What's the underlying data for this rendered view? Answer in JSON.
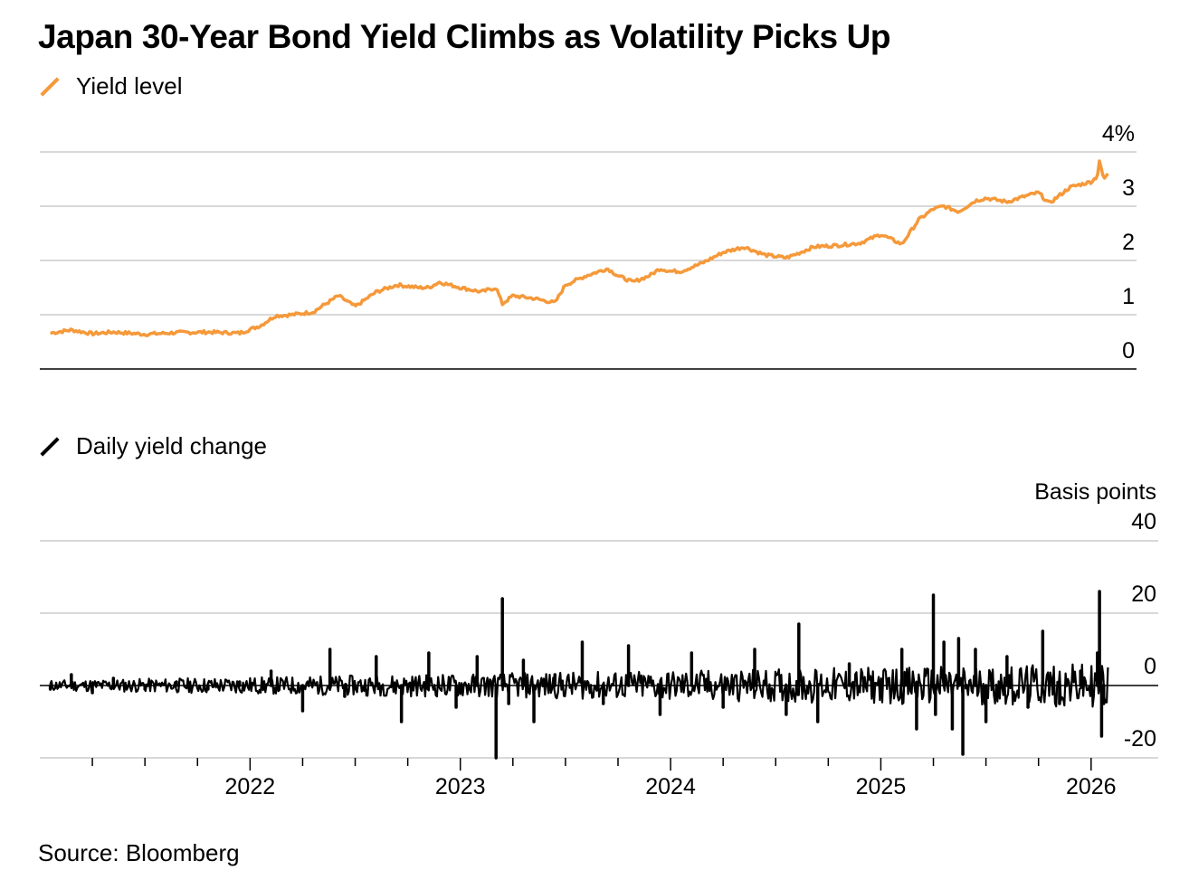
{
  "title": "Japan 30-Year Bond Yield Climbs as Volatility Picks Up",
  "source": "Source: Bloomberg",
  "colors": {
    "yield": "#F5993A",
    "change": "#000000",
    "grid": "#cccccc",
    "axis": "#000000"
  },
  "chart_data": [
    {
      "type": "line",
      "name": "yield-level",
      "legend": "Yield level",
      "unit_label": "",
      "x_range": [
        2021.0,
        2026.13
      ],
      "ylim": [
        0,
        4
      ],
      "yticks": [
        0,
        1,
        2,
        3,
        4
      ],
      "ytick_labels": [
        "0",
        "1",
        "2",
        "3",
        "4%"
      ],
      "series": [
        {
          "name": "Yield level",
          "x": [
            2021.05,
            2021.15,
            2021.25,
            2021.35,
            2021.5,
            2021.65,
            2021.8,
            2021.95,
            2022.05,
            2022.12,
            2022.2,
            2022.3,
            2022.42,
            2022.5,
            2022.6,
            2022.7,
            2022.8,
            2022.85,
            2022.9,
            2023.0,
            2023.1,
            2023.17,
            2023.2,
            2023.25,
            2023.35,
            2023.45,
            2023.5,
            2023.6,
            2023.7,
            2023.75,
            2023.82,
            2023.9,
            2023.95,
            2024.0,
            2024.05,
            2024.15,
            2024.25,
            2024.35,
            2024.45,
            2024.55,
            2024.6,
            2024.68,
            2024.8,
            2024.9,
            2025.0,
            2025.1,
            2025.18,
            2025.25,
            2025.3,
            2025.37,
            2025.45,
            2025.5,
            2025.6,
            2025.7,
            2025.75,
            2025.8,
            2025.85,
            2025.9,
            2025.95,
            2026.0,
            2026.03,
            2026.04,
            2026.06,
            2026.08
          ],
          "y": [
            0.66,
            0.72,
            0.65,
            0.68,
            0.64,
            0.67,
            0.68,
            0.66,
            0.8,
            0.98,
            1.0,
            1.05,
            1.35,
            1.15,
            1.42,
            1.55,
            1.5,
            1.5,
            1.6,
            1.5,
            1.42,
            1.5,
            1.2,
            1.35,
            1.3,
            1.22,
            1.55,
            1.72,
            1.85,
            1.72,
            1.6,
            1.72,
            1.85,
            1.8,
            1.8,
            1.95,
            2.15,
            2.25,
            2.1,
            2.05,
            2.12,
            2.25,
            2.28,
            2.32,
            2.48,
            2.3,
            2.75,
            2.95,
            3.0,
            2.9,
            3.1,
            3.15,
            3.08,
            3.2,
            3.25,
            3.05,
            3.2,
            3.35,
            3.4,
            3.45,
            3.55,
            3.85,
            3.5,
            3.6
          ]
        }
      ]
    },
    {
      "type": "line",
      "name": "daily-yield-change",
      "legend": "Daily yield change",
      "unit_label": "Basis points",
      "x_range": [
        2021.0,
        2026.13
      ],
      "ylim": [
        -20,
        40
      ],
      "yticks": [
        40,
        20,
        0,
        -20
      ],
      "ytick_labels": [
        "40",
        "20",
        "0",
        "-20"
      ],
      "xticks": [
        2022,
        2023,
        2024,
        2025,
        2026
      ],
      "xtick_labels": [
        "2022",
        "2023",
        "2024",
        "2025",
        "2026"
      ],
      "series": [
        {
          "name": "Daily yield change",
          "x": [
            2021.05,
            2021.15,
            2021.25,
            2021.35,
            2021.5,
            2021.65,
            2021.8,
            2021.95,
            2022.1,
            2022.25,
            2022.38,
            2022.45,
            2022.6,
            2022.72,
            2022.85,
            2022.98,
            2023.08,
            2023.17,
            2023.2,
            2023.23,
            2023.3,
            2023.35,
            2023.45,
            2023.58,
            2023.68,
            2023.8,
            2023.95,
            2024.1,
            2024.25,
            2024.4,
            2024.55,
            2024.61,
            2024.7,
            2024.85,
            2025.0,
            2025.1,
            2025.17,
            2025.25,
            2025.26,
            2025.3,
            2025.34,
            2025.37,
            2025.39,
            2025.45,
            2025.5,
            2025.6,
            2025.7,
            2025.77,
            2025.85,
            2025.95,
            2026.03,
            2026.04,
            2026.05,
            2026.06
          ],
          "y": [
            -1,
            3,
            -2,
            2,
            -1,
            1,
            -1,
            1,
            4,
            -7,
            10,
            -3,
            8,
            -10,
            9,
            -6,
            8,
            -20,
            24,
            -5,
            7,
            -10,
            3,
            12,
            -5,
            11,
            -8,
            9,
            -6,
            10,
            -8,
            17,
            -10,
            6,
            -2,
            10,
            -12,
            25,
            -8,
            12,
            -12,
            13,
            -19,
            10,
            -10,
            8,
            -6,
            15,
            -5,
            4,
            9,
            26,
            -14,
            -5
          ]
        }
      ]
    }
  ]
}
